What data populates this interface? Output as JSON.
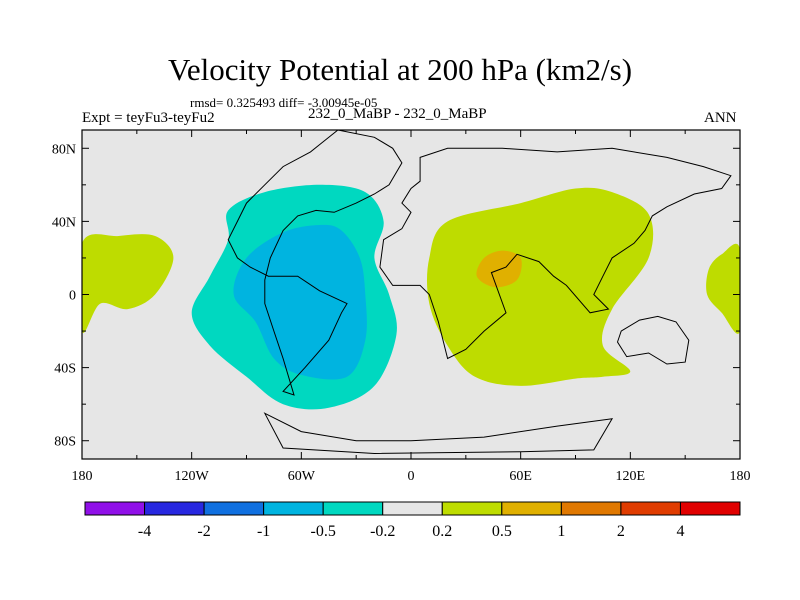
{
  "chart_data": {
    "type": "contour_map",
    "title": "Velocity Potential at 200 hPa (km2/s)",
    "stats_line": "rmsd= 0.325493 diff= -3.00945e-05",
    "left_label": "Expt = teyFu3-teyFu2",
    "center_label": "232_0_MaBP - 232_0_MaBP",
    "right_label": "ANN",
    "x_axis": {
      "range": [
        -180,
        180
      ],
      "ticks": [
        -180,
        -120,
        -60,
        0,
        60,
        120,
        180
      ],
      "tick_labels": [
        "180",
        "120W",
        "60W",
        "0",
        "60E",
        "120E",
        "180"
      ]
    },
    "y_axis": {
      "range": [
        -90,
        90
      ],
      "ticks": [
        80,
        40,
        0,
        -40,
        -80
      ],
      "tick_labels": [
        "80N",
        "40N",
        "0",
        "40S",
        "80S"
      ]
    },
    "colorbar": {
      "labels": [
        "-4",
        "-2",
        "-1",
        "-0.5",
        "-0.2",
        "0.2",
        "0.5",
        "1",
        "2",
        "4"
      ],
      "colors": [
        "#9010e8",
        "#2828e0",
        "#1070e0",
        "#00b4e0",
        "#00d8c0",
        "#e6e6e6",
        "#bedc00",
        "#e0b000",
        "#e07800",
        "#e03c00",
        "#e00000"
      ]
    },
    "regions": [
      {
        "name": "western-hemisphere-negative-outer",
        "range": "-0.5 to -0.2",
        "color": "#00d8c0",
        "lonlat": [
          [
            -100,
            46
          ],
          [
            -80,
            56
          ],
          [
            -50,
            60
          ],
          [
            -25,
            56
          ],
          [
            -15,
            40
          ],
          [
            -20,
            20
          ],
          [
            -12,
            0
          ],
          [
            -8,
            -22
          ],
          [
            -20,
            -50
          ],
          [
            -45,
            -62
          ],
          [
            -70,
            -60
          ],
          [
            -90,
            -45
          ],
          [
            -110,
            -28
          ],
          [
            -120,
            -10
          ],
          [
            -110,
            10
          ],
          [
            -100,
            30
          ]
        ]
      },
      {
        "name": "western-hemisphere-negative-inner",
        "range": "-1 to -0.5",
        "color": "#00b4e0",
        "lonlat": [
          [
            -70,
            34
          ],
          [
            -50,
            38
          ],
          [
            -38,
            35
          ],
          [
            -28,
            20
          ],
          [
            -25,
            0
          ],
          [
            -25,
            -25
          ],
          [
            -35,
            -45
          ],
          [
            -60,
            -44
          ],
          [
            -75,
            -35
          ],
          [
            -85,
            -15
          ],
          [
            -97,
            0
          ],
          [
            -90,
            20
          ]
        ]
      },
      {
        "name": "eastern-hemisphere-positive-outer",
        "range": "0.2 to 0.5",
        "color": "#bedc00",
        "lonlat": [
          [
            20,
            40
          ],
          [
            60,
            50
          ],
          [
            90,
            58
          ],
          [
            110,
            56
          ],
          [
            130,
            44
          ],
          [
            130,
            20
          ],
          [
            110,
            -8
          ],
          [
            105,
            -28
          ],
          [
            120,
            -42
          ],
          [
            105,
            -45
          ],
          [
            90,
            -46
          ],
          [
            60,
            -50
          ],
          [
            35,
            -45
          ],
          [
            20,
            -28
          ],
          [
            10,
            -5
          ],
          [
            10,
            20
          ]
        ]
      },
      {
        "name": "eastern-hemisphere-positive-inner",
        "range": "0.5 to 1",
        "color": "#e0b000",
        "lonlat": [
          [
            40,
            20
          ],
          [
            50,
            24
          ],
          [
            60,
            20
          ],
          [
            58,
            8
          ],
          [
            46,
            4
          ],
          [
            36,
            10
          ]
        ]
      },
      {
        "name": "pacific-west-positive",
        "range": "0.2 to 0.5",
        "color": "#bedc00",
        "lonlat": [
          [
            -180,
            28
          ],
          [
            -160,
            32
          ],
          [
            -140,
            32
          ],
          [
            -130,
            20
          ],
          [
            -140,
            0
          ],
          [
            -155,
            -8
          ],
          [
            -170,
            -5
          ],
          [
            -180,
            -20
          ]
        ]
      },
      {
        "name": "pacific-east-positive",
        "range": "0.2 to 0.5",
        "color": "#bedc00",
        "lonlat": [
          [
            163,
            14
          ],
          [
            170,
            22
          ],
          [
            180,
            25
          ],
          [
            180,
            -20
          ],
          [
            170,
            -10
          ],
          [
            162,
            0
          ]
        ]
      }
    ],
    "coastlines": [
      {
        "name": "americas-outline",
        "lonlat": [
          [
            -50,
            82
          ],
          [
            -40,
            90
          ],
          [
            -20,
            86
          ],
          [
            -10,
            80
          ],
          [
            -5,
            72
          ],
          [
            -12,
            60
          ],
          [
            -20,
            55
          ],
          [
            -30,
            50
          ],
          [
            -42,
            45
          ],
          [
            -52,
            46
          ],
          [
            -62,
            43
          ],
          [
            -70,
            35
          ],
          [
            -77,
            20
          ],
          [
            -80,
            8
          ],
          [
            -80,
            -5
          ],
          [
            -75,
            -20
          ],
          [
            -70,
            -35
          ],
          [
            -64,
            -55
          ],
          [
            -70,
            -53
          ],
          [
            -58,
            -40
          ],
          [
            -45,
            -25
          ],
          [
            -38,
            -10
          ],
          [
            -35,
            -5
          ],
          [
            -50,
            2
          ],
          [
            -62,
            10
          ],
          [
            -78,
            10
          ],
          [
            -88,
            15
          ],
          [
            -95,
            20
          ],
          [
            -100,
            30
          ],
          [
            -95,
            40
          ],
          [
            -90,
            50
          ],
          [
            -80,
            60
          ],
          [
            -70,
            70
          ],
          [
            -55,
            78
          ]
        ]
      },
      {
        "name": "afro-eurasia-outline",
        "lonlat": [
          [
            5,
            75
          ],
          [
            20,
            80
          ],
          [
            50,
            80
          ],
          [
            80,
            78
          ],
          [
            110,
            80
          ],
          [
            140,
            75
          ],
          [
            160,
            70
          ],
          [
            175,
            65
          ],
          [
            170,
            58
          ],
          [
            155,
            55
          ],
          [
            140,
            48
          ],
          [
            132,
            43
          ],
          [
            128,
            35
          ],
          [
            122,
            28
          ],
          [
            110,
            20
          ],
          [
            105,
            10
          ],
          [
            100,
            0
          ],
          [
            108,
            -8
          ],
          [
            98,
            -10
          ],
          [
            85,
            5
          ],
          [
            78,
            10
          ],
          [
            70,
            18
          ],
          [
            58,
            22
          ],
          [
            52,
            15
          ],
          [
            44,
            12
          ],
          [
            52,
            -10
          ],
          [
            40,
            -20
          ],
          [
            30,
            -30
          ],
          [
            20,
            -35
          ],
          [
            15,
            -15
          ],
          [
            10,
            0
          ],
          [
            5,
            5
          ],
          [
            -10,
            5
          ],
          [
            -17,
            15
          ],
          [
            -15,
            30
          ],
          [
            -5,
            36
          ],
          [
            0,
            45
          ],
          [
            -5,
            50
          ],
          [
            0,
            58
          ],
          [
            5,
            62
          ]
        ]
      },
      {
        "name": "australia-outline",
        "lonlat": [
          [
            115,
            -20
          ],
          [
            125,
            -14
          ],
          [
            135,
            -12
          ],
          [
            145,
            -15
          ],
          [
            152,
            -25
          ],
          [
            150,
            -37
          ],
          [
            140,
            -38
          ],
          [
            130,
            -32
          ],
          [
            118,
            -34
          ],
          [
            113,
            -26
          ]
        ]
      },
      {
        "name": "antarctica-outline",
        "lonlat": [
          [
            -80,
            -65
          ],
          [
            -60,
            -75
          ],
          [
            -30,
            -80
          ],
          [
            0,
            -80
          ],
          [
            40,
            -78
          ],
          [
            80,
            -72
          ],
          [
            110,
            -68
          ],
          [
            100,
            -85
          ],
          [
            60,
            -86
          ],
          [
            -20,
            -87
          ],
          [
            -70,
            -84
          ]
        ]
      }
    ]
  }
}
